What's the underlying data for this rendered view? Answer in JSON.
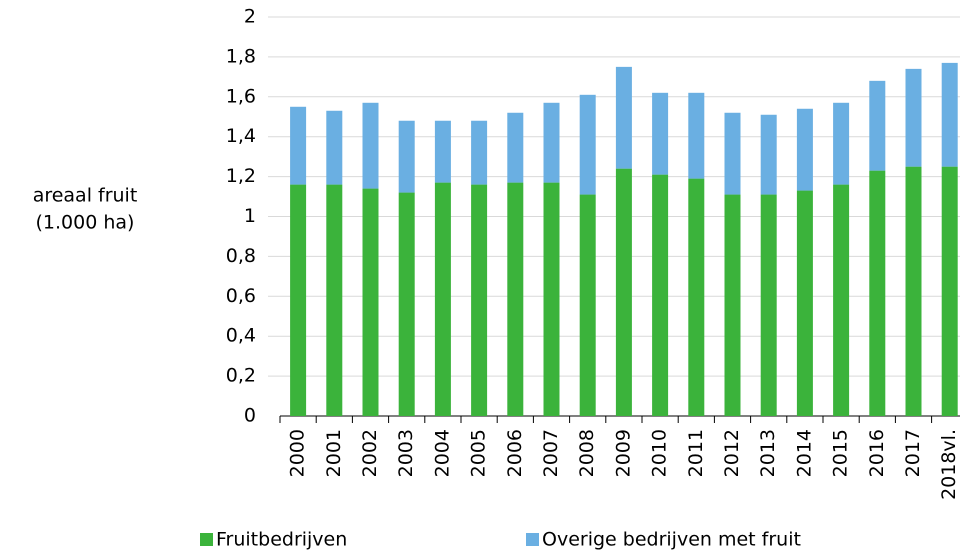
{
  "chart_data": {
    "type": "stacked_bar",
    "y_label": [
      "areaal fruit",
      "(1.000 ha)"
    ],
    "categories": [
      "2000",
      "2001",
      "2002",
      "2003",
      "2004",
      "2005",
      "2006",
      "2007",
      "2008",
      "2009",
      "2010",
      "2011",
      "2012",
      "2013",
      "2014",
      "2015",
      "2016",
      "2017",
      "2018vl."
    ],
    "series": [
      {
        "name": "Fruitbedrijven",
        "color": "#3bb33b",
        "values": [
          1.16,
          1.16,
          1.14,
          1.12,
          1.17,
          1.16,
          1.17,
          1.17,
          1.11,
          1.24,
          1.21,
          1.19,
          1.11,
          1.11,
          1.13,
          1.16,
          1.23,
          1.25,
          1.25
        ]
      },
      {
        "name": "Overige bedrijven met fruit",
        "color": "#6aafe2",
        "values": [
          0.39,
          0.37,
          0.43,
          0.36,
          0.31,
          0.32,
          0.35,
          0.4,
          0.5,
          0.51,
          0.41,
          0.43,
          0.41,
          0.4,
          0.41,
          0.41,
          0.45,
          0.49,
          0.52
        ]
      }
    ],
    "ylim": [
      0,
      2
    ],
    "yticks": [
      0,
      {
        "value": 0.2,
        "label": "0,2"
      },
      {
        "value": 0.4,
        "label": "0,4"
      },
      {
        "value": 0.6,
        "label": "0,6"
      },
      {
        "value": 0.8,
        "label": "0,8"
      },
      1,
      {
        "value": 1.2,
        "label": "1,2"
      },
      {
        "value": 1.4,
        "label": "1,4"
      },
      {
        "value": 1.6,
        "label": "1,6"
      },
      {
        "value": 1.8,
        "label": "1,8"
      },
      2
    ],
    "grid": true,
    "legend": "bottom"
  }
}
